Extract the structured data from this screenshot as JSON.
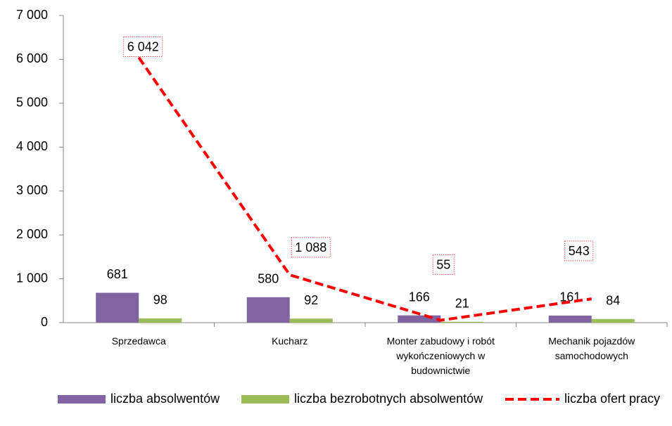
{
  "chart_data": {
    "type": "bar_line",
    "categories": [
      "Sprzedawca",
      "Kucharz",
      "Monter zabudowy i robót wykończeniowych w budownictwie",
      "Mechanik pojazdów samochodowych"
    ],
    "series": [
      {
        "name": "liczba absolwentów",
        "type": "bar",
        "color": "#8064a2",
        "values": [
          681,
          580,
          166,
          161
        ]
      },
      {
        "name": "liczba bezrobotnych absolwentów",
        "type": "bar",
        "color": "#9bbb59",
        "values": [
          98,
          92,
          21,
          84
        ]
      },
      {
        "name": "liczba ofert pracy",
        "type": "line",
        "color": "#ff0000",
        "values": [
          6042,
          1088,
          55,
          543
        ],
        "value_labels": [
          "6 042",
          "1 088",
          "55",
          "543"
        ]
      }
    ],
    "ylim": [
      0,
      7000
    ],
    "yticks": [
      0,
      {
        "value": 1000,
        "label": "1 000"
      },
      {
        "value": 2000,
        "label": "2 000"
      },
      {
        "value": 3000,
        "label": "3 000"
      },
      {
        "value": 4000,
        "label": "4 000"
      },
      {
        "value": 5000,
        "label": "5 000"
      },
      {
        "value": 6000,
        "label": "6 000"
      },
      {
        "value": 7000,
        "label": "7 000"
      }
    ],
    "legend": "bottom"
  }
}
